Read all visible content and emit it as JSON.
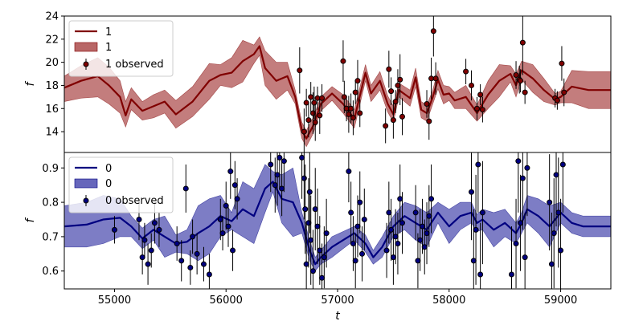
{
  "chart_data": [
    {
      "type": "line",
      "panel": "top",
      "color": "#800000",
      "band_color": "#b86666",
      "xlabel": "",
      "ylabel": "f",
      "xlim": [
        54550,
        59450
      ],
      "ylim": [
        12.2,
        24.0
      ],
      "yticks": [
        14,
        16,
        18,
        20,
        22,
        24
      ],
      "legend": {
        "placement": "upper-left",
        "entries": [
          "1",
          "1",
          "1 observed"
        ]
      },
      "series": [
        {
          "name": "1",
          "kind": "mean",
          "x": [
            54550,
            54700,
            54850,
            54950,
            55050,
            55100,
            55150,
            55250,
            55350,
            55450,
            55550,
            55700,
            55850,
            55950,
            56050,
            56150,
            56250,
            56300,
            56350,
            56450,
            56550,
            56620,
            56680,
            56720,
            56780,
            56850,
            56950,
            57050,
            57150,
            57250,
            57300,
            57380,
            57450,
            57500,
            57550,
            57650,
            57700,
            57750,
            57800,
            57850,
            57900,
            57950,
            58000,
            58050,
            58150,
            58250,
            58350,
            58450,
            58550,
            58600,
            58650,
            58750,
            58850,
            58950,
            59000,
            59100,
            59250,
            59450
          ],
          "y": [
            17.8,
            18.4,
            18.8,
            18.0,
            17.0,
            15.4,
            16.8,
            15.8,
            16.2,
            16.6,
            15.5,
            16.6,
            18.4,
            18.9,
            19.1,
            20.1,
            20.7,
            21.4,
            19.5,
            18.4,
            18.8,
            17.0,
            14.1,
            13.4,
            14.5,
            16.4,
            17.3,
            16.4,
            15.1,
            19.1,
            17.3,
            18.4,
            16.4,
            15.5,
            17.6,
            16.9,
            18.7,
            15.9,
            15.6,
            16.9,
            18.5,
            17.2,
            17.3,
            16.7,
            17.0,
            15.6,
            17.2,
            18.4,
            19.0,
            18.0,
            19.3,
            18.6,
            17.6,
            16.8,
            17.0,
            17.9,
            17.6,
            17.6
          ]
        },
        {
          "name": "1",
          "kind": "band",
          "x": [
            54550,
            54700,
            54850,
            54950,
            55050,
            55100,
            55150,
            55250,
            55350,
            55450,
            55550,
            55700,
            55850,
            55950,
            56050,
            56150,
            56250,
            56300,
            56350,
            56450,
            56550,
            56620,
            56680,
            56720,
            56780,
            56850,
            56950,
            57050,
            57150,
            57250,
            57300,
            57380,
            57450,
            57500,
            57550,
            57650,
            57700,
            57750,
            57800,
            57850,
            57900,
            57950,
            58000,
            58050,
            58150,
            58250,
            58350,
            58450,
            58550,
            58600,
            58650,
            58750,
            58850,
            58950,
            59000,
            59100,
            59250,
            59450
          ],
          "lower": [
            16.6,
            16.9,
            17.0,
            16.4,
            15.6,
            14.4,
            15.9,
            15.0,
            15.2,
            15.6,
            14.3,
            15.3,
            16.8,
            18.0,
            17.8,
            18.3,
            19.9,
            20.6,
            18.0,
            16.8,
            17.6,
            16.4,
            13.4,
            12.7,
            13.8,
            15.8,
            16.7,
            15.6,
            14.3,
            18.4,
            16.6,
            17.6,
            15.7,
            14.8,
            17.0,
            16.2,
            17.9,
            15.2,
            14.9,
            16.3,
            17.7,
            16.4,
            16.7,
            16.0,
            16.0,
            14.9,
            16.0,
            17.0,
            18.3,
            17.0,
            18.5,
            17.4,
            16.6,
            16.3,
            16.5,
            16.5,
            16.0,
            16.0
          ],
          "upper": [
            18.8,
            19.7,
            20.4,
            19.6,
            18.4,
            16.6,
            17.8,
            16.6,
            17.2,
            17.6,
            16.7,
            17.9,
            19.9,
            19.8,
            20.4,
            21.9,
            21.5,
            22.2,
            21.0,
            20.0,
            20.0,
            17.6,
            14.8,
            14.1,
            15.2,
            17.0,
            17.9,
            17.2,
            15.9,
            19.8,
            18.0,
            19.2,
            17.1,
            16.2,
            18.2,
            17.6,
            19.5,
            16.6,
            16.3,
            17.5,
            19.3,
            18.0,
            17.9,
            17.4,
            18.0,
            16.3,
            18.4,
            19.8,
            19.7,
            19.0,
            20.1,
            19.8,
            18.6,
            17.3,
            17.5,
            19.3,
            19.2,
            19.2
          ]
        },
        {
          "name": "1 observed",
          "kind": "points",
          "x": [
            56660,
            56700,
            56720,
            56740,
            56760,
            56780,
            56790,
            56800,
            56820,
            56840,
            56860,
            57050,
            57060,
            57080,
            57100,
            57120,
            57140,
            57160,
            57180,
            57200,
            57430,
            57460,
            57480,
            57500,
            57520,
            57540,
            57560,
            57580,
            57800,
            57820,
            57840,
            57860,
            57880,
            58150,
            58200,
            58250,
            58280,
            58300,
            58600,
            58630,
            58640,
            58660,
            58680,
            58950,
            58970,
            59010,
            59030
          ],
          "y": [
            19.3,
            14.0,
            16.5,
            15.0,
            17.0,
            15.6,
            16.5,
            14.8,
            16.9,
            15.4,
            16.9,
            20.1,
            17.0,
            16.0,
            15.5,
            16.0,
            15.2,
            17.4,
            18.4,
            15.6,
            14.5,
            19.4,
            17.5,
            15.0,
            16.6,
            18.0,
            18.5,
            15.3,
            16.4,
            14.9,
            18.6,
            22.7,
            18.6,
            19.2,
            18.0,
            16.0,
            17.2,
            15.9,
            18.9,
            18.5,
            18.4,
            21.7,
            17.4,
            16.9,
            16.7,
            19.9,
            17.4
          ],
          "err": [
            2.0,
            2.0,
            1.2,
            1.5,
            1.3,
            1.8,
            1.4,
            1.6,
            1.0,
            1.6,
            1.2,
            1.8,
            1.4,
            1.1,
            1.6,
            1.3,
            1.5,
            1.0,
            1.8,
            1.2,
            1.5,
            1.6,
            1.2,
            1.6,
            1.0,
            1.4,
            2.2,
            1.6,
            1.2,
            1.6,
            1.8,
            2.2,
            1.4,
            1.1,
            1.3,
            1.0,
            0.9,
            1.1,
            1.2,
            1.2,
            1.0,
            2.8,
            1.0,
            0.8,
            0.8,
            1.5,
            1.2
          ]
        }
      ]
    },
    {
      "type": "line",
      "panel": "bottom",
      "color": "#000080",
      "band_color": "#6666bb",
      "xlabel": "t",
      "ylabel": "f",
      "xlim": [
        54550,
        59450
      ],
      "ylim": [
        0.548,
        0.945
      ],
      "xticks": [
        55000,
        56000,
        57000,
        58000,
        59000
      ],
      "yticks": [
        0.6,
        0.7,
        0.8,
        0.9
      ],
      "legend": {
        "placement": "upper-left",
        "entries": [
          "0",
          "0",
          "0 observed"
        ]
      },
      "series": [
        {
          "name": "0",
          "kind": "mean",
          "x": [
            54550,
            54750,
            54900,
            55050,
            55150,
            55250,
            55350,
            55450,
            55550,
            55650,
            55750,
            55850,
            55950,
            56050,
            56150,
            56250,
            56350,
            56420,
            56500,
            56600,
            56680,
            56750,
            56800,
            56850,
            56950,
            57050,
            57150,
            57250,
            57320,
            57400,
            57450,
            57500,
            57600,
            57700,
            57800,
            57900,
            58000,
            58100,
            58200,
            58250,
            58300,
            58400,
            58500,
            58600,
            58650,
            58700,
            58800,
            58900,
            59000,
            59100,
            59200,
            59450
          ],
          "y": [
            0.73,
            0.735,
            0.75,
            0.755,
            0.73,
            0.695,
            0.72,
            0.7,
            0.68,
            0.685,
            0.71,
            0.73,
            0.76,
            0.745,
            0.78,
            0.76,
            0.84,
            0.86,
            0.81,
            0.8,
            0.74,
            0.66,
            0.62,
            0.64,
            0.67,
            0.69,
            0.71,
            0.68,
            0.64,
            0.67,
            0.7,
            0.73,
            0.76,
            0.74,
            0.72,
            0.77,
            0.73,
            0.76,
            0.77,
            0.74,
            0.75,
            0.72,
            0.74,
            0.71,
            0.74,
            0.78,
            0.76,
            0.73,
            0.77,
            0.74,
            0.73,
            0.73
          ]
        },
        {
          "name": "0",
          "kind": "band",
          "x": [
            54550,
            54750,
            54900,
            55050,
            55150,
            55250,
            55350,
            55450,
            55550,
            55650,
            55750,
            55850,
            55950,
            56050,
            56150,
            56250,
            56350,
            56420,
            56500,
            56600,
            56680,
            56750,
            56800,
            56850,
            56950,
            57050,
            57150,
            57250,
            57320,
            57400,
            57450,
            57500,
            57600,
            57700,
            57800,
            57900,
            58000,
            58100,
            58200,
            58250,
            58300,
            58400,
            58500,
            58600,
            58650,
            58700,
            58800,
            58900,
            59000,
            59100,
            59200,
            59450
          ],
          "lower": [
            0.67,
            0.67,
            0.68,
            0.7,
            0.7,
            0.665,
            0.69,
            0.64,
            0.655,
            0.65,
            0.63,
            0.65,
            0.7,
            0.72,
            0.7,
            0.68,
            0.77,
            0.83,
            0.74,
            0.7,
            0.71,
            0.63,
            0.6,
            0.62,
            0.64,
            0.665,
            0.69,
            0.655,
            0.62,
            0.64,
            0.67,
            0.7,
            0.72,
            0.69,
            0.67,
            0.74,
            0.68,
            0.72,
            0.74,
            0.715,
            0.72,
            0.67,
            0.7,
            0.68,
            0.71,
            0.74,
            0.71,
            0.67,
            0.74,
            0.71,
            0.7,
            0.7
          ],
          "upper": [
            0.79,
            0.8,
            0.82,
            0.81,
            0.76,
            0.725,
            0.75,
            0.76,
            0.705,
            0.72,
            0.79,
            0.81,
            0.82,
            0.77,
            0.86,
            0.84,
            0.91,
            0.89,
            0.88,
            0.9,
            0.77,
            0.69,
            0.64,
            0.66,
            0.7,
            0.715,
            0.73,
            0.705,
            0.66,
            0.7,
            0.73,
            0.76,
            0.8,
            0.79,
            0.77,
            0.8,
            0.78,
            0.8,
            0.8,
            0.765,
            0.78,
            0.77,
            0.78,
            0.74,
            0.77,
            0.82,
            0.81,
            0.79,
            0.8,
            0.77,
            0.76,
            0.76
          ]
        },
        {
          "name": "0 observed",
          "kind": "points",
          "x": [
            55000,
            55220,
            55250,
            55270,
            55300,
            55330,
            55360,
            55400,
            55560,
            55600,
            55640,
            55680,
            55700,
            55740,
            55800,
            55850,
            55950,
            55970,
            56000,
            56020,
            56040,
            56060,
            56080,
            56100,
            56400,
            56440,
            56460,
            56480,
            56500,
            56520,
            56680,
            56700,
            56710,
            56720,
            56740,
            56750,
            56760,
            56780,
            56800,
            56820,
            56840,
            56860,
            56880,
            56900,
            57100,
            57120,
            57140,
            57160,
            57180,
            57200,
            57220,
            57240,
            57440,
            57460,
            57480,
            57500,
            57520,
            57540,
            57560,
            57580,
            57700,
            57720,
            57740,
            57760,
            57780,
            57800,
            57820,
            57840,
            58200,
            58220,
            58240,
            58260,
            58280,
            58300,
            58560,
            58600,
            58620,
            58640,
            58660,
            58680,
            58700,
            58900,
            58920,
            58940,
            58960,
            58980,
            59000,
            59020
          ],
          "y": [
            0.72,
            0.75,
            0.64,
            0.69,
            0.62,
            0.66,
            0.74,
            0.72,
            0.68,
            0.63,
            0.84,
            0.61,
            0.7,
            0.65,
            0.62,
            0.59,
            0.75,
            0.71,
            0.79,
            0.73,
            0.89,
            0.66,
            0.85,
            0.81,
            0.91,
            0.85,
            0.88,
            0.93,
            0.84,
            0.92,
            0.93,
            0.87,
            0.78,
            0.62,
            0.74,
            0.83,
            0.69,
            0.6,
            0.78,
            0.73,
            0.66,
            0.58,
            0.64,
            0.71,
            0.89,
            0.77,
            0.68,
            0.63,
            0.73,
            0.8,
            0.65,
            0.75,
            0.66,
            0.77,
            0.72,
            0.64,
            0.7,
            0.68,
            0.81,
            0.74,
            0.77,
            0.63,
            0.69,
            0.73,
            0.67,
            0.71,
            0.76,
            0.81,
            0.83,
            0.63,
            0.72,
            0.91,
            0.59,
            0.77,
            0.59,
            0.68,
            0.92,
            0.74,
            0.87,
            0.64,
            0.9,
            0.8,
            0.62,
            0.71,
            0.88,
            0.77,
            0.66,
            0.91
          ],
          "err": [
            0.04,
            0.06,
            0.05,
            0.05,
            0.06,
            0.05,
            0.06,
            0.05,
            0.05,
            0.06,
            0.07,
            0.05,
            0.05,
            0.06,
            0.05,
            0.06,
            0.06,
            0.05,
            0.07,
            0.06,
            0.08,
            0.06,
            0.07,
            0.06,
            0.08,
            0.08,
            0.09,
            0.09,
            0.08,
            0.09,
            0.12,
            0.12,
            0.13,
            0.12,
            0.13,
            0.12,
            0.13,
            0.12,
            0.12,
            0.11,
            0.1,
            0.1,
            0.09,
            0.1,
            0.09,
            0.09,
            0.08,
            0.08,
            0.09,
            0.09,
            0.08,
            0.09,
            0.08,
            0.09,
            0.09,
            0.08,
            0.08,
            0.09,
            0.1,
            0.09,
            0.08,
            0.08,
            0.09,
            0.08,
            0.08,
            0.09,
            0.09,
            0.1,
            0.14,
            0.15,
            0.16,
            0.14,
            0.15,
            0.15,
            0.14,
            0.13,
            0.15,
            0.14,
            0.15,
            0.13,
            0.14,
            0.14,
            0.15,
            0.16,
            0.15,
            0.16,
            0.15,
            0.14
          ]
        }
      ]
    }
  ]
}
